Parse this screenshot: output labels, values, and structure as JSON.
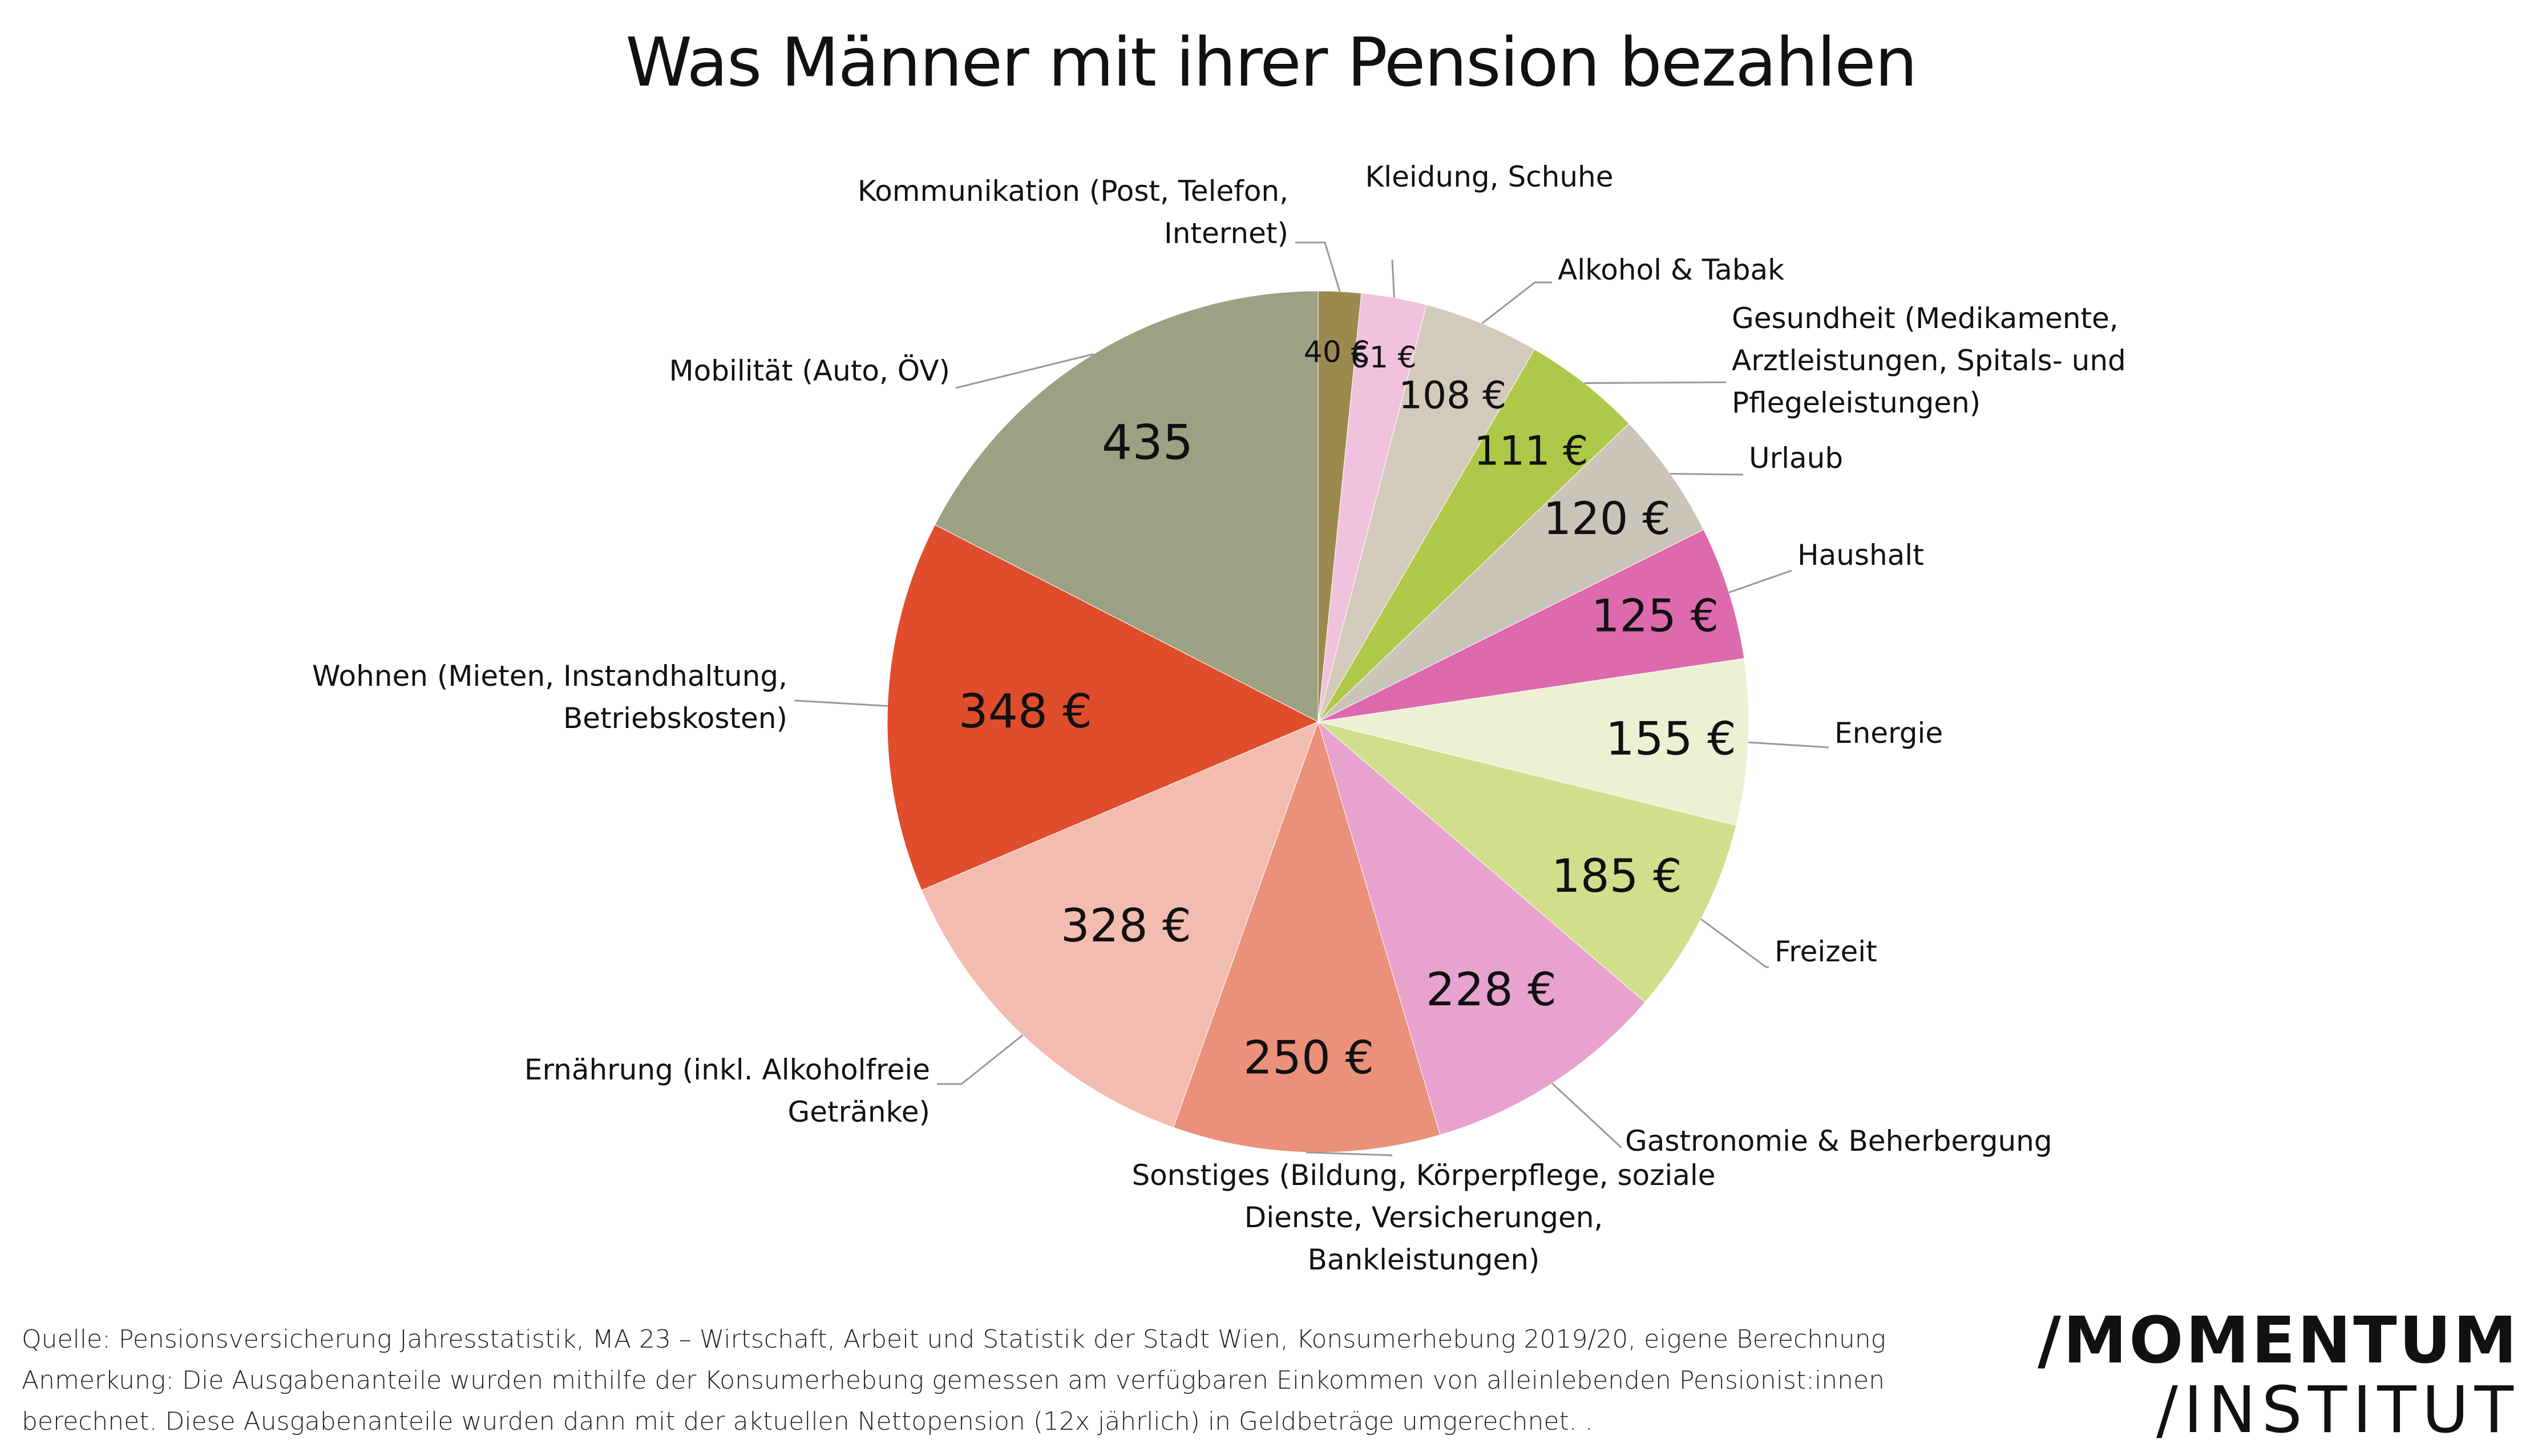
{
  "title": "Was Männer mit ihrer Pension bezahlen",
  "chart_data": {
    "type": "pie",
    "title": "Was Männer mit ihrer Pension bezahlen",
    "slices": [
      {
        "label": "Kommunikation (Post, Telefon, Internet)",
        "label_lines": [
          "Kommunikation (Post, Telefon,",
          "Internet)"
        ],
        "value": 40,
        "value_label": "40 €",
        "color": "#9b8a4e"
      },
      {
        "label": "Kleidung, Schuhe",
        "label_lines": [
          "Kleidung, Schuhe"
        ],
        "value": 61,
        "value_label": "61 €",
        "color": "#f0c2de"
      },
      {
        "label": "Alkohol & Tabak",
        "label_lines": [
          "Alkohol & Tabak"
        ],
        "value": 108,
        "value_label": "108 €",
        "color": "#d4cabb"
      },
      {
        "label": "Gesundheit (Medikamente, Arztleistungen, Spitals- und Pflegeleistungen)",
        "label_lines": [
          "Gesundheit (Medikamente,",
          "Arztleistungen, Spitals- und",
          "Pflegeleistungen)"
        ],
        "value": 111,
        "value_label": "111 €",
        "color": "#afc84a"
      },
      {
        "label": "Urlaub",
        "label_lines": [
          "Urlaub"
        ],
        "value": 120,
        "value_label": "120 €",
        "color": "#cac4b9"
      },
      {
        "label": "Haushalt",
        "label_lines": [
          "Haushalt"
        ],
        "value": 125,
        "value_label": "125 €",
        "color": "#dc6aad"
      },
      {
        "label": "Energie",
        "label_lines": [
          "Energie"
        ],
        "value": 155,
        "value_label": "155 €",
        "color": "#ecf1d4"
      },
      {
        "label": "Freizeit",
        "label_lines": [
          "Freizeit"
        ],
        "value": 185,
        "value_label": "185 €",
        "color": "#d1df8d"
      },
      {
        "label": "Gastronomie & Beherbergung",
        "label_lines": [
          "Gastronomie & Beherbergung"
        ],
        "value": 228,
        "value_label": "228 €",
        "color": "#e7a2cd"
      },
      {
        "label": "Sonstiges (Bildung, Körperpflege, soziale Dienste, Versicherungen, Bankleistungen)",
        "label_lines": [
          "Sonstiges (Bildung, Körperpflege, soziale",
          "Dienste, Versicherungen,",
          "Bankleistungen)"
        ],
        "value": 250,
        "value_label": "250 €",
        "color": "#eb907a"
      },
      {
        "label": "Ernährung (inkl. Alkoholfreie Getränke)",
        "label_lines": [
          "Ernährung (inkl. Alkoholfreie",
          "Getränke)"
        ],
        "value": 328,
        "value_label": "328 €",
        "color": "#f3bcb0"
      },
      {
        "label": "Wohnen (Mieten, Instandhaltung, Betriebskosten)",
        "label_lines": [
          "Wohnen (Mieten, Instandhaltung,",
          "Betriebskosten)"
        ],
        "value": 348,
        "value_label": "348 €",
        "color": "#e04d2c"
      },
      {
        "label": "Mobilität (Auto, ÖV)",
        "label_lines": [
          "Mobilität (Auto, ÖV)"
        ],
        "value": 435,
        "value_label": "435",
        "color": "#9ca183"
      }
    ]
  },
  "footer": {
    "source": "Quelle: Pensionsversicherung Jahresstatistik, MA 23 – Wirtschaft, Arbeit und Statistik der Stadt Wien, Konsumerhebung 2019/20, eigene Berechnung",
    "note_1": "Anmerkung: Die Ausgabenanteile wurden mithilfe der Konsumerhebung gemessen am verfügbaren Einkommen von alleinlebenden Pensionist:innen",
    "note_2": "berechnet. Diese Ausgabenanteile wurden dann mit der aktuellen Nettopension (12x jährlich) in Geldbeträge umgerechnet. ."
  },
  "logo": {
    "line1": "/MOMENTUM",
    "line2": "/INSTITUT"
  }
}
